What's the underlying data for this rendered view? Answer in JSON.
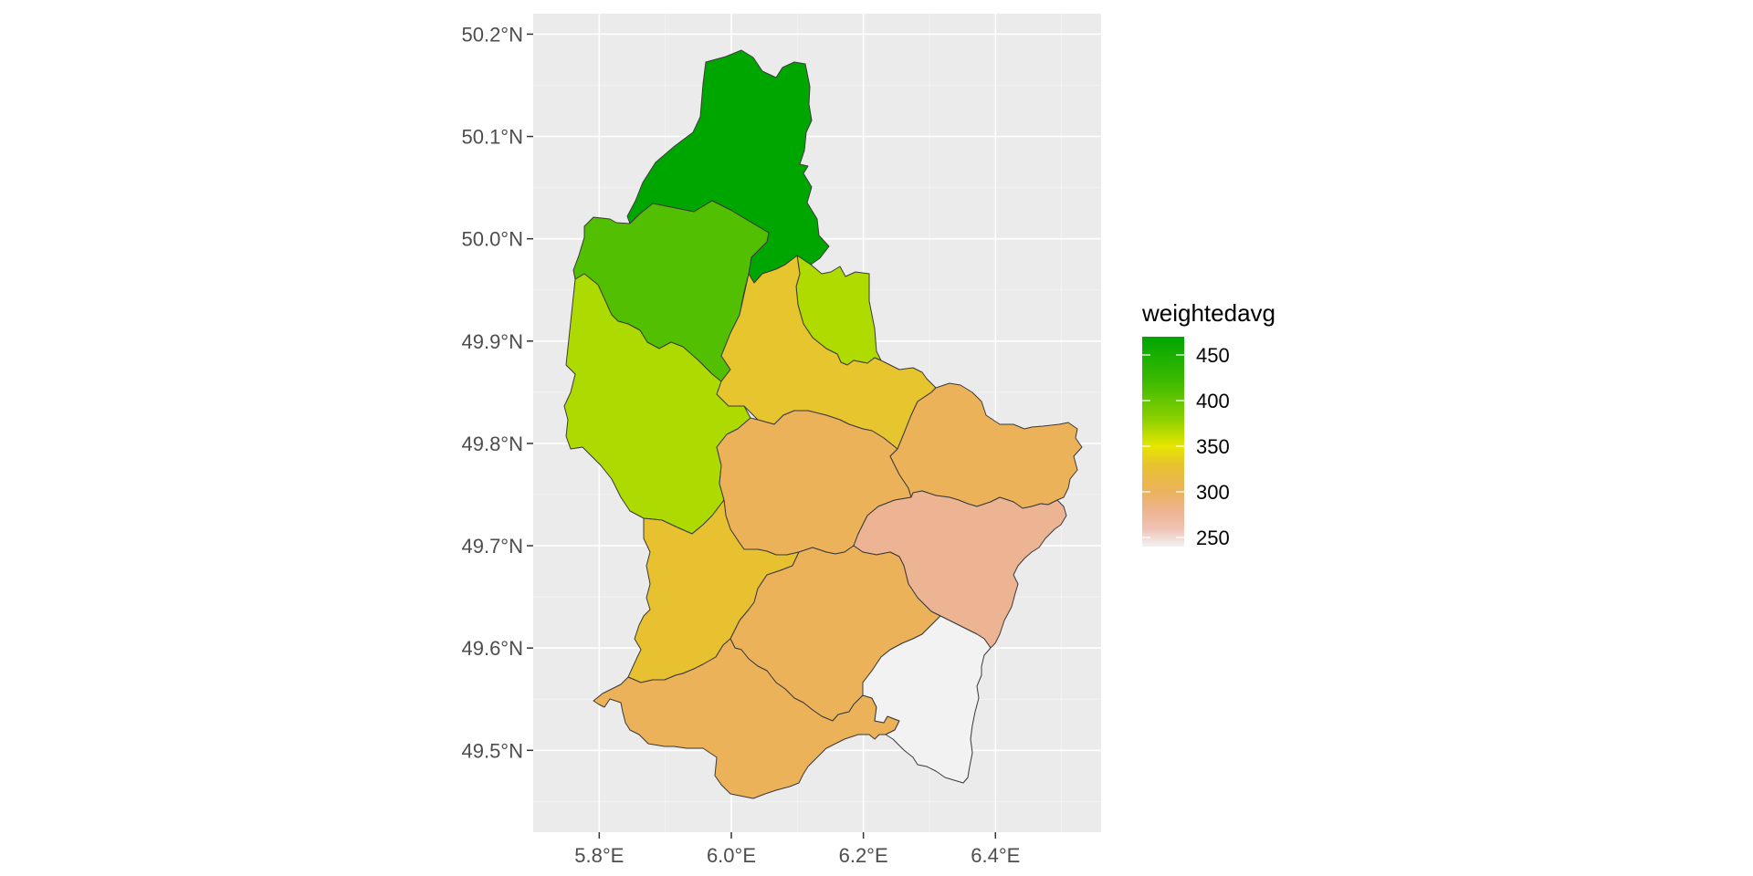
{
  "legend": {
    "title": "weightedavg",
    "breaks": [
      "450",
      "400",
      "350",
      "300",
      "250"
    ],
    "break_values": [
      450,
      400,
      350,
      300,
      250
    ],
    "range": [
      240,
      470
    ],
    "gradient": [
      {
        "value": 470,
        "color": "#00A600"
      },
      {
        "value": 420,
        "color": "#3EBB00"
      },
      {
        "value": 380,
        "color": "#8BD000"
      },
      {
        "value": 350,
        "color": "#E6E600"
      },
      {
        "value": 330,
        "color": "#E8C32E"
      },
      {
        "value": 300,
        "color": "#EBB25E"
      },
      {
        "value": 280,
        "color": "#EDB48E"
      },
      {
        "value": 260,
        "color": "#EFC2B3"
      },
      {
        "value": 240,
        "color": "#F2F2F2"
      }
    ]
  },
  "axes": {
    "x_ticks": [
      "5.8°E",
      "6.0°E",
      "6.2°E",
      "6.4°E"
    ],
    "y_ticks": [
      "50.2°N",
      "50.1°N",
      "50.0°N",
      "49.9°N",
      "49.8°N",
      "49.7°N",
      "49.6°N",
      "49.5°N"
    ],
    "x_tick_values": [
      5.8,
      6.0,
      6.2,
      6.4
    ],
    "y_tick_values": [
      50.2,
      50.1,
      50.0,
      49.9,
      49.8,
      49.7,
      49.6,
      49.5
    ],
    "xlim": [
      5.7,
      6.56
    ],
    "ylim": [
      49.42,
      50.22
    ],
    "panel_background": "#EBEBEB",
    "grid": true
  },
  "chart_data": {
    "type": "choropleth",
    "variable": "weightedavg",
    "regions": [
      {
        "id": "north",
        "value": 470,
        "color": "#00A600"
      },
      {
        "id": "north-west",
        "value": 420,
        "color": "#52C000"
      },
      {
        "id": "north-east",
        "value": 380,
        "color": "#B0DB00"
      },
      {
        "id": "west",
        "value": 385,
        "color": "#ADDA00"
      },
      {
        "id": "centre-north",
        "value": 340,
        "color": "#E6C52E"
      },
      {
        "id": "centre",
        "value": 305,
        "color": "#EBB25A"
      },
      {
        "id": "east",
        "value": 305,
        "color": "#EBB25A"
      },
      {
        "id": "south-east",
        "value": 275,
        "color": "#EDB494"
      },
      {
        "id": "south-west",
        "value": 335,
        "color": "#E7C130"
      },
      {
        "id": "south-centre",
        "value": 305,
        "color": "#EBB25A"
      },
      {
        "id": "south",
        "value": 305,
        "color": "#EBB25A"
      },
      {
        "id": "far-south-east",
        "value": 240,
        "color": "#F2F2F2"
      }
    ]
  }
}
